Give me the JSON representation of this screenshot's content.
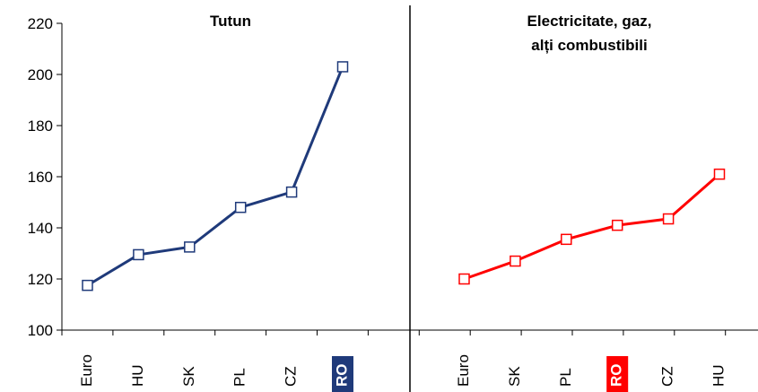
{
  "chart_data": [
    {
      "type": "line",
      "title": "Tutun",
      "categories": [
        "Euro",
        "HU",
        "SK",
        "PL",
        "CZ",
        "RO"
      ],
      "highlight": "RO",
      "series": [
        {
          "values": [
            117.5,
            129.5,
            132.5,
            148,
            154,
            203
          ],
          "color": "#1f3a7a",
          "marker": "square"
        }
      ],
      "ylim": [
        100,
        220
      ],
      "yticks": [
        100,
        120,
        140,
        160,
        180,
        200,
        220
      ],
      "grid": false,
      "legend": "none"
    },
    {
      "type": "line",
      "title_lines": [
        "Electricitate, gaz,",
        "alți combustibili"
      ],
      "categories": [
        "Euro",
        "SK",
        "PL",
        "RO",
        "CZ",
        "HU"
      ],
      "highlight": "RO",
      "series": [
        {
          "values": [
            120,
            127,
            135.5,
            141,
            143.5,
            161
          ],
          "color": "#ff0000",
          "marker": "square"
        }
      ],
      "ylim": [
        100,
        220
      ],
      "grid": false,
      "legend": "none"
    }
  ]
}
